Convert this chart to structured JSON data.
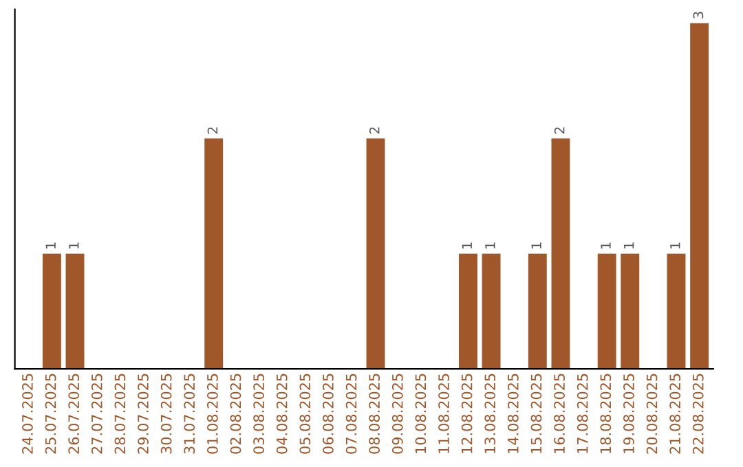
{
  "chart_data": {
    "type": "bar",
    "categories": [
      "24.07.2025",
      "25.07.2025",
      "26.07.2025",
      "27.07.2025",
      "28.07.2025",
      "29.07.2025",
      "30.07.2025",
      "31.07.2025",
      "01.08.2025",
      "02.08.2025",
      "03.08.2025",
      "04.08.2025",
      "05.08.2025",
      "06.08.2025",
      "07.08.2025",
      "08.08.2025",
      "09.08.2025",
      "10.08.2025",
      "11.08.2025",
      "12.08.2025",
      "13.08.2025",
      "14.08.2025",
      "15.08.2025",
      "16.08.2025",
      "17.08.2025",
      "18.08.2025",
      "19.08.2025",
      "20.08.2025",
      "21.08.2025",
      "22.08.2025"
    ],
    "values": [
      0,
      1,
      1,
      0,
      0,
      0,
      0,
      0,
      2,
      0,
      0,
      0,
      0,
      0,
      0,
      2,
      0,
      0,
      0,
      1,
      1,
      0,
      1,
      2,
      0,
      1,
      1,
      0,
      1,
      3
    ],
    "value_labels": [
      null,
      "1",
      "1",
      null,
      null,
      null,
      null,
      null,
      "2",
      null,
      null,
      null,
      null,
      null,
      null,
      "2",
      null,
      null,
      null,
      "1",
      "1",
      null,
      "1",
      "2",
      null,
      "1",
      "1",
      null,
      "1",
      "3"
    ],
    "color": "#a0582a",
    "tick_labels": "x",
    "grid": false
  }
}
